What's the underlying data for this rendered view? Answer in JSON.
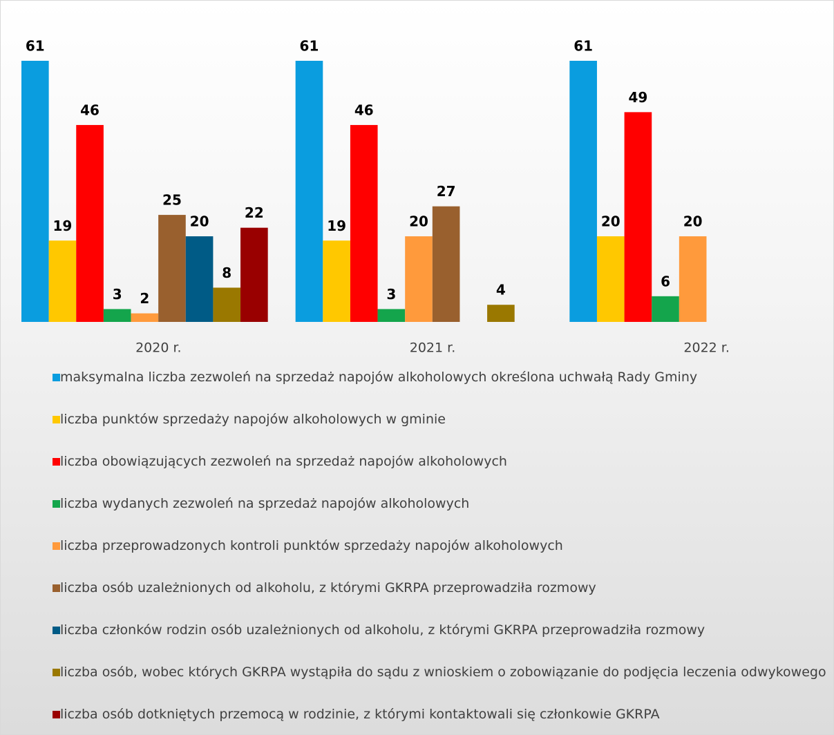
{
  "chart_data": {
    "type": "bar",
    "categories": [
      "2020 r.",
      "2021 r.",
      "2022 r."
    ],
    "series": [
      {
        "name": "maksymalna liczba zezwoleń na sprzedaż napojów alkoholowych określona uchwałą Rady Gminy",
        "color": "#0a9ddf",
        "values": [
          61,
          61,
          61
        ]
      },
      {
        "name": "liczba punktów sprzedaży napojów alkoholowych w gminie",
        "color": "#ffc800",
        "values": [
          19,
          19,
          20
        ]
      },
      {
        "name": "liczba obowiązujących zezwoleń na sprzedaż napojów alkoholowych",
        "color": "#ff0000",
        "values": [
          46,
          46,
          49
        ]
      },
      {
        "name": "liczba wydanych zezwoleń na sprzedaż napojów alkoholowych",
        "color": "#14a54c",
        "values": [
          3,
          3,
          6
        ]
      },
      {
        "name": "liczba przeprowadzonych kontroli punktów sprzedaży napojów alkoholowych",
        "color": "#ff9a3c",
        "values": [
          2,
          20,
          20
        ]
      },
      {
        "name": "liczba osób uzależnionych od alkoholu, z którymi GKRPA przeprowadziła rozmowy",
        "color": "#99602e",
        "values": [
          25,
          27,
          null
        ]
      },
      {
        "name": "liczba członków rodzin osób uzależnionych od alkoholu, z którymi GKRPA przeprowadziła rozmowy",
        "color": "#005b86",
        "values": [
          20,
          null,
          null
        ]
      },
      {
        "name": "liczba osób, wobec których GKRPA wystąpiła do sądu z wnioskiem o zobowiązanie do podjęcia leczenia odwykowego",
        "color": "#9a7800",
        "values": [
          8,
          4,
          null
        ]
      },
      {
        "name": "liczba osób dotkniętych przemocą w rodzinie, z którymi kontaktowali się członkowie GKRPA",
        "color": "#990000",
        "values": [
          22,
          null,
          null
        ]
      }
    ]
  }
}
